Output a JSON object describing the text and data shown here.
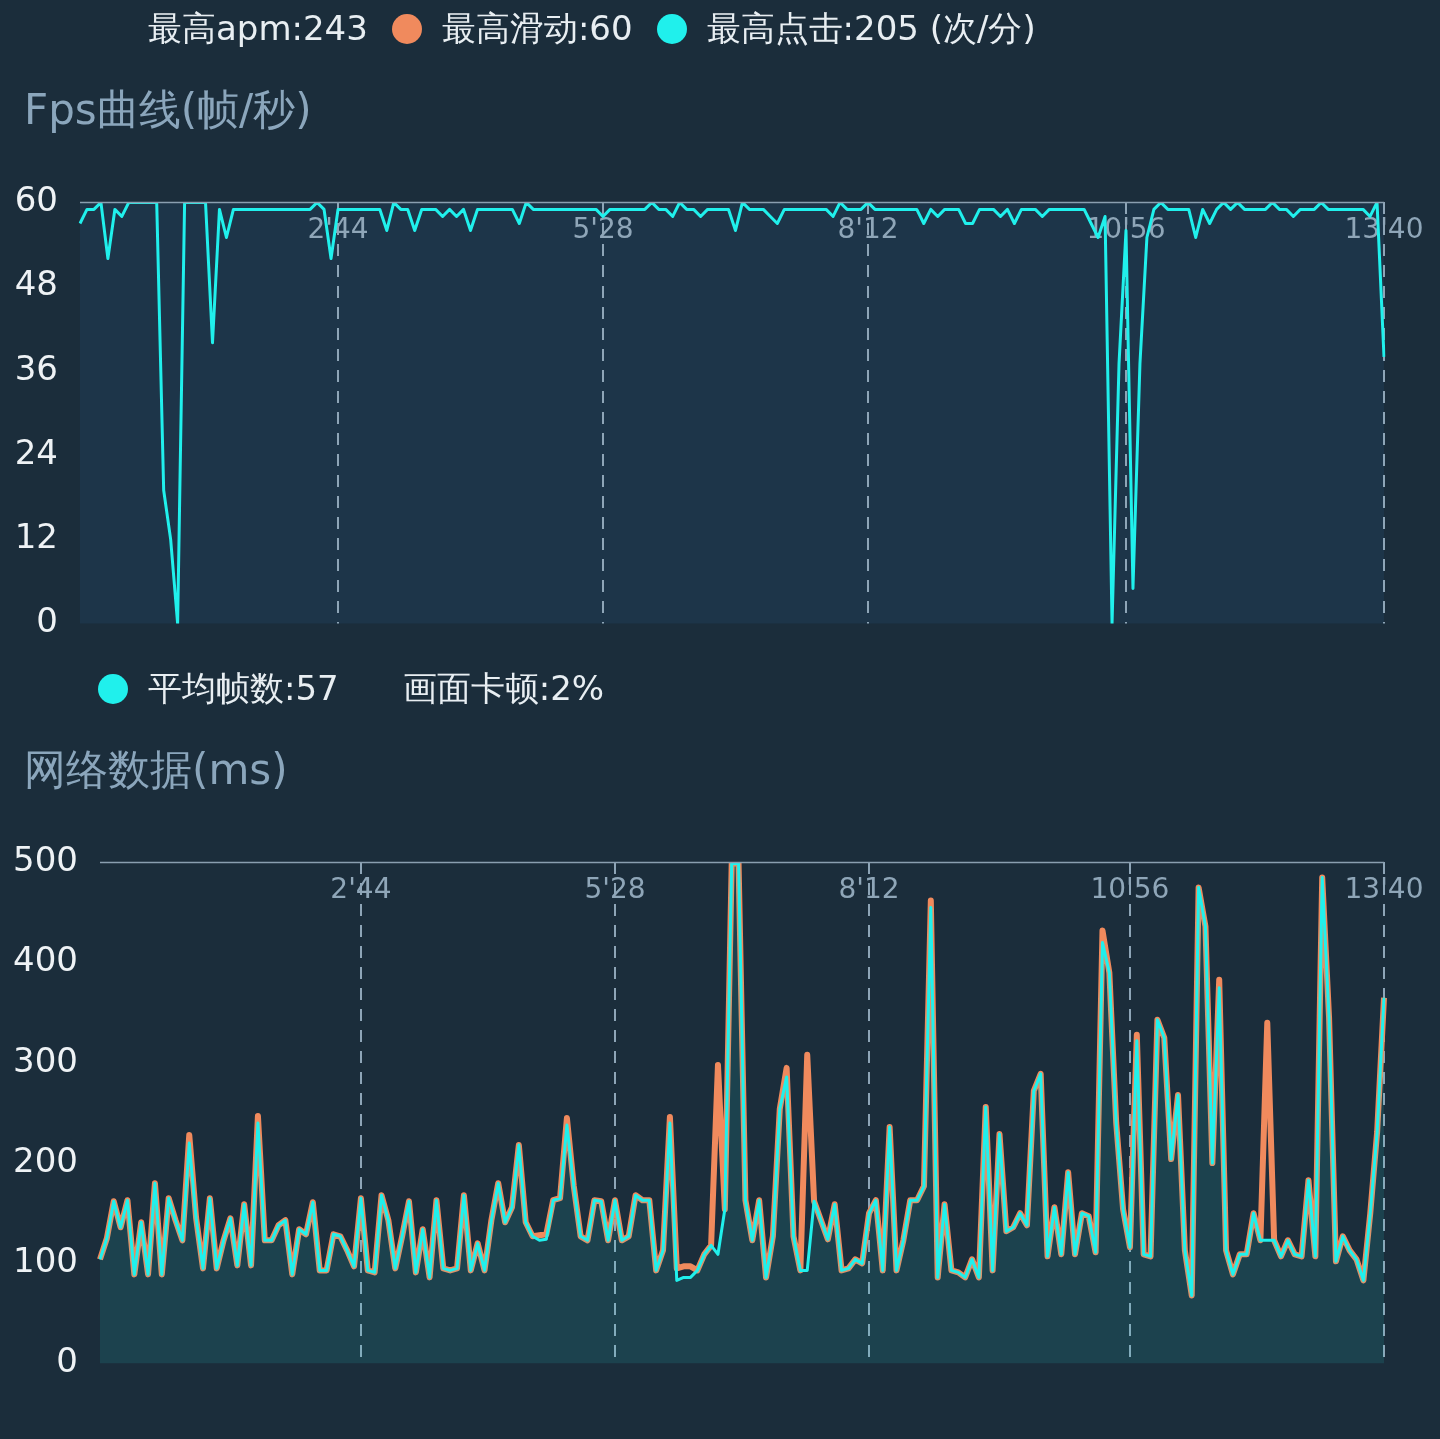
{
  "chart_data": [
    {
      "type": "other",
      "annotations": [
        "最高apm:243",
        "最高滑动:60",
        "最高点击:205 (次/分)"
      ],
      "colors": [
        null,
        "#f08a5d",
        "#20f0ec"
      ]
    },
    {
      "type": "line",
      "title": "Fps曲线(帧/秒)",
      "annotations": [
        "平均帧数:57",
        "画面卡顿:2%"
      ],
      "grid": "x",
      "ylim": [
        0,
        60
      ],
      "yticks": [
        0,
        12,
        24,
        36,
        48,
        60
      ],
      "categories": [
        null,
        null,
        null,
        null,
        null,
        null,
        null,
        null,
        null,
        null,
        null,
        null,
        null,
        null,
        null,
        null,
        null,
        null,
        null,
        null,
        null,
        null,
        null,
        null,
        null,
        null,
        null,
        null,
        null,
        null,
        null,
        null,
        null,
        null,
        null,
        null,
        null,
        "2'44",
        null,
        null,
        null,
        null,
        null,
        null,
        null,
        null,
        null,
        null,
        null,
        null,
        null,
        null,
        null,
        null,
        null,
        null,
        null,
        null,
        null,
        null,
        null,
        null,
        null,
        null,
        null,
        null,
        null,
        null,
        null,
        null,
        null,
        null,
        null,
        null,
        null,
        "5'28",
        null,
        null,
        null,
        null,
        null,
        null,
        null,
        null,
        null,
        null,
        null,
        null,
        null,
        null,
        null,
        null,
        null,
        null,
        null,
        null,
        null,
        null,
        null,
        null,
        null,
        null,
        null,
        null,
        null,
        null,
        null,
        null,
        null,
        null,
        null,
        null,
        null,
        "8'12",
        null,
        null,
        null,
        null,
        null,
        null,
        null,
        null,
        null,
        null,
        null,
        null,
        null,
        null,
        null,
        null,
        null,
        null,
        null,
        null,
        null,
        null,
        null,
        null,
        null,
        null,
        null,
        null,
        null,
        null,
        null,
        null,
        null,
        null,
        null,
        null,
        "10'56",
        null,
        null,
        null,
        null,
        null,
        null,
        null,
        null,
        null,
        null,
        null,
        null,
        null,
        null,
        null,
        null,
        null,
        null,
        null,
        null,
        null,
        null,
        null,
        null,
        null,
        null,
        null,
        null,
        null,
        null,
        null,
        null,
        null,
        null,
        null,
        null,
        "13'40"
      ],
      "series": [
        {
          "color": "#20f0ec",
          "values": [
            57,
            59,
            59,
            60,
            52,
            59,
            58,
            60,
            60,
            60,
            60,
            60,
            19,
            12,
            0,
            60,
            60,
            60,
            60,
            40,
            59,
            55,
            59,
            59,
            59,
            59,
            59,
            59,
            59,
            59,
            59,
            59,
            59,
            59,
            60,
            59,
            52,
            59,
            59,
            59,
            59,
            59,
            59,
            59,
            56,
            60,
            59,
            59,
            56,
            59,
            59,
            59,
            58,
            59,
            58,
            59,
            56,
            59,
            59,
            59,
            59,
            59,
            59,
            57,
            60,
            59,
            59,
            59,
            59,
            59,
            59,
            59,
            59,
            59,
            59,
            58,
            59,
            59,
            59,
            59,
            59,
            59,
            60,
            59,
            59,
            58,
            60,
            59,
            59,
            58,
            59,
            59,
            59,
            59,
            56,
            60,
            59,
            59,
            59,
            58,
            57,
            59,
            59,
            59,
            59,
            59,
            59,
            59,
            58,
            60,
            59,
            59,
            59,
            60,
            59,
            59,
            59,
            59,
            59,
            59,
            59,
            57,
            59,
            58,
            59,
            59,
            59,
            57,
            57,
            59,
            59,
            59,
            58,
            59,
            57,
            59,
            59,
            59,
            58,
            59,
            59,
            59,
            59,
            59,
            59,
            57,
            55,
            58,
            0,
            37,
            56,
            5,
            37,
            55,
            59,
            60,
            59,
            59,
            59,
            59,
            55,
            59,
            57,
            59,
            60,
            59,
            60,
            59,
            59,
            59,
            59,
            60,
            59,
            59,
            58,
            59,
            59,
            59,
            60,
            59,
            59,
            59,
            59,
            59,
            59,
            58,
            60,
            38
          ]
        }
      ]
    },
    {
      "type": "line",
      "title": "网络数据(ms)",
      "grid": "x",
      "ylim": [
        0,
        500
      ],
      "yticks": [
        0,
        100,
        200,
        300,
        400,
        500
      ],
      "categories": [
        null,
        null,
        null,
        null,
        null,
        null,
        null,
        null,
        null,
        null,
        null,
        null,
        null,
        null,
        null,
        null,
        null,
        null,
        null,
        null,
        null,
        null,
        null,
        null,
        null,
        null,
        null,
        null,
        null,
        null,
        null,
        null,
        null,
        null,
        null,
        null,
        null,
        null,
        "2'44",
        null,
        null,
        null,
        null,
        null,
        null,
        null,
        null,
        null,
        null,
        null,
        null,
        null,
        null,
        null,
        null,
        null,
        null,
        null,
        null,
        null,
        null,
        null,
        null,
        null,
        null,
        null,
        null,
        null,
        null,
        null,
        null,
        null,
        null,
        null,
        null,
        "5'28",
        null,
        null,
        null,
        null,
        null,
        null,
        null,
        null,
        null,
        null,
        null,
        null,
        null,
        null,
        null,
        null,
        null,
        null,
        null,
        null,
        null,
        null,
        null,
        null,
        null,
        null,
        null,
        null,
        null,
        null,
        null,
        null,
        null,
        null,
        null,
        null,
        "8'12",
        null,
        null,
        null,
        null,
        null,
        null,
        null,
        null,
        null,
        null,
        null,
        null,
        null,
        null,
        null,
        null,
        null,
        null,
        null,
        null,
        null,
        null,
        null,
        null,
        null,
        null,
        null,
        null,
        null,
        null,
        null,
        null,
        null,
        null,
        null,
        null,
        null,
        "10'56",
        null,
        null,
        null,
        null,
        null,
        null,
        null,
        null,
        null,
        null,
        null,
        null,
        null,
        null,
        null,
        null,
        null,
        null,
        null,
        null,
        null,
        null,
        null,
        null,
        null,
        null,
        null,
        null,
        null,
        null,
        null,
        null,
        null,
        null,
        null,
        null,
        "13'40"
      ],
      "series": [
        {
          "type": "line",
          "color": "#f08a5d",
          "values": [
            104,
            125,
            162,
            136,
            163,
            89,
            141,
            89,
            180,
            89,
            165,
            143,
            123,
            228,
            145,
            95,
            165,
            95,
            123,
            145,
            98,
            159,
            98,
            247,
            123,
            123,
            138,
            143,
            89,
            134,
            129,
            161,
            93,
            93,
            129,
            127,
            113,
            97,
            165,
            93,
            91,
            168,
            143,
            95,
            127,
            162,
            91,
            134,
            86,
            163,
            95,
            93,
            95,
            168,
            93,
            120,
            93,
            143,
            180,
            141,
            156,
            218,
            141,
            127,
            128,
            129,
            163,
            165,
            245,
            177,
            127,
            123,
            163,
            162,
            123,
            163,
            123,
            127,
            168,
            163,
            163,
            93,
            113,
            246,
            95,
            97,
            97,
            93,
            109,
            118,
            298,
            154,
            499,
            499,
            163,
            123,
            163,
            86,
            127,
            254,
            295,
            127,
            93,
            308,
            162,
            143,
            124,
            159,
            93,
            95,
            104,
            100,
            150,
            163,
            93,
            236,
            93,
            123,
            163,
            163,
            177,
            462,
            86,
            159,
            93,
            91,
            86,
            104,
            86,
            256,
            93,
            229,
            132,
            136,
            150,
            138,
            272,
            289,
            107,
            156,
            109,
            191,
            109,
            150,
            147,
            111,
            432,
            390,
            240,
            154,
            116,
            328,
            109,
            107,
            343,
            325,
            204,
            268,
            113,
            68,
            475,
            436,
            200,
            383,
            113,
            89,
            109,
            109,
            150,
            123,
            340,
            123,
            107,
            123,
            109,
            107,
            183,
            107,
            485,
            345,
            102,
            127,
            113,
            104,
            83,
            150,
            231,
            365
          ]
        },
        {
          "type": "area",
          "color": "#20f0ec",
          "values": [
            104,
            125,
            162,
            136,
            163,
            89,
            141,
            89,
            180,
            89,
            165,
            143,
            123,
            220,
            145,
            95,
            165,
            95,
            123,
            145,
            98,
            159,
            98,
            240,
            123,
            123,
            138,
            143,
            89,
            134,
            129,
            161,
            93,
            93,
            129,
            127,
            113,
            97,
            165,
            93,
            91,
            168,
            143,
            95,
            127,
            162,
            91,
            134,
            86,
            163,
            95,
            93,
            95,
            168,
            93,
            120,
            93,
            143,
            180,
            141,
            156,
            218,
            141,
            127,
            123,
            124,
            163,
            165,
            238,
            177,
            127,
            123,
            163,
            162,
            123,
            163,
            123,
            127,
            168,
            163,
            163,
            93,
            113,
            240,
            83,
            86,
            86,
            93,
            109,
            118,
            109,
            154,
            499,
            499,
            163,
            123,
            163,
            86,
            127,
            254,
            286,
            127,
            93,
            93,
            162,
            143,
            124,
            159,
            93,
            95,
            104,
            100,
            150,
            163,
            93,
            236,
            93,
            123,
            163,
            163,
            177,
            455,
            86,
            159,
            93,
            91,
            86,
            104,
            86,
            256,
            93,
            229,
            132,
            136,
            150,
            138,
            272,
            289,
            107,
            156,
            109,
            191,
            109,
            150,
            147,
            111,
            420,
            390,
            240,
            154,
            116,
            322,
            109,
            107,
            343,
            325,
            204,
            268,
            113,
            68,
            475,
            436,
            200,
            375,
            113,
            89,
            109,
            109,
            150,
            123,
            123,
            123,
            107,
            123,
            109,
            107,
            183,
            107,
            485,
            345,
            102,
            127,
            113,
            104,
            83,
            150,
            231,
            365
          ]
        }
      ]
    }
  ]
}
